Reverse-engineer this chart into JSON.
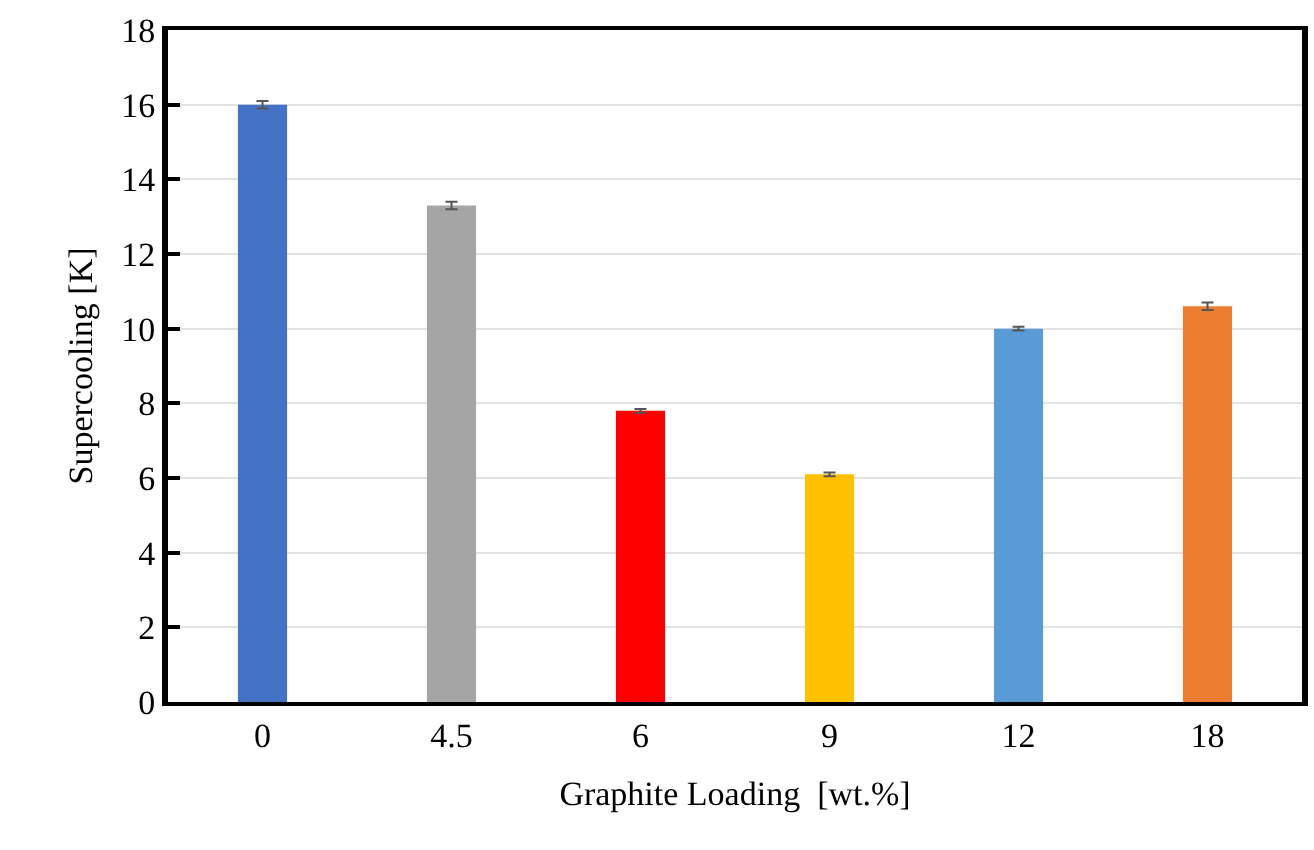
{
  "chart_data": {
    "type": "bar",
    "xlabel": "Graphite Loading  [wt.%]",
    "ylabel": "Supercooling [K]",
    "categories": [
      "0",
      "4.5",
      "6",
      "9",
      "12",
      "18"
    ],
    "values": [
      16.0,
      13.3,
      7.8,
      6.1,
      10.0,
      10.6
    ],
    "colors": [
      "#4472c4",
      "#a5a5a5",
      "#ff0000",
      "#ffc000",
      "#5b9bd5",
      "#ed7d31"
    ],
    "errors": [
      0.1,
      0.1,
      0.05,
      0.05,
      0.05,
      0.1
    ],
    "ylim": [
      0,
      18
    ],
    "yticks": [
      0,
      2,
      4,
      6,
      8,
      10,
      12,
      14,
      16,
      18
    ],
    "grid": "y"
  }
}
